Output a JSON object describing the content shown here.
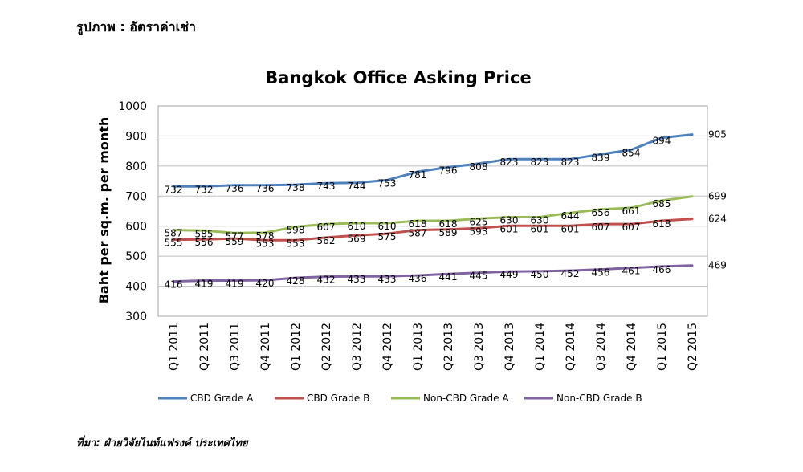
{
  "caption": "รูปภาพ : อัตราค่าเช่า",
  "source": "ที่มา: ฝ่ายวิจัยไนท์แฟรงค์ ประเทศไทย",
  "chart_data": {
    "type": "line",
    "title": "Bangkok Office Asking Price",
    "xlabel": "",
    "ylabel": "Baht per sq.m. per month",
    "ylim": [
      300,
      1000
    ],
    "yticks": [
      300,
      400,
      500,
      600,
      700,
      800,
      900,
      1000
    ],
    "grid": true,
    "legend": "bottom",
    "categories": [
      "Q1 2011",
      "Q2 2011",
      "Q3 2011",
      "Q4 2011",
      "Q1 2012",
      "Q2 2012",
      "Q3 2012",
      "Q4 2012",
      "Q1 2013",
      "Q2 2013",
      "Q3 2013",
      "Q4 2013",
      "Q1 2014",
      "Q2 2014",
      "Q3 2014",
      "Q4 2014",
      "Q1 2015",
      "Q2 2015"
    ],
    "series": [
      {
        "name": "CBD Grade A",
        "color": "#4f81bd",
        "values": [
          732,
          732,
          736,
          736,
          738,
          743,
          744,
          753,
          781,
          796,
          808,
          823,
          823,
          823,
          839,
          854,
          894,
          905
        ]
      },
      {
        "name": "CBD Grade B",
        "color": "#c0504d",
        "values": [
          555,
          556,
          559,
          553,
          553,
          562,
          569,
          575,
          587,
          589,
          593,
          601,
          601,
          601,
          607,
          607,
          618,
          624
        ]
      },
      {
        "name": "Non-CBD Grade A",
        "color": "#9bbb59",
        "values": [
          587,
          585,
          577,
          578,
          598,
          607,
          610,
          610,
          618,
          618,
          625,
          630,
          630,
          644,
          656,
          661,
          685,
          699
        ]
      },
      {
        "name": "Non-CBD Grade B",
        "color": "#8064a2",
        "values": [
          416,
          419,
          419,
          420,
          428,
          432,
          433,
          433,
          436,
          441,
          445,
          449,
          450,
          452,
          456,
          461,
          466,
          469
        ]
      }
    ]
  }
}
